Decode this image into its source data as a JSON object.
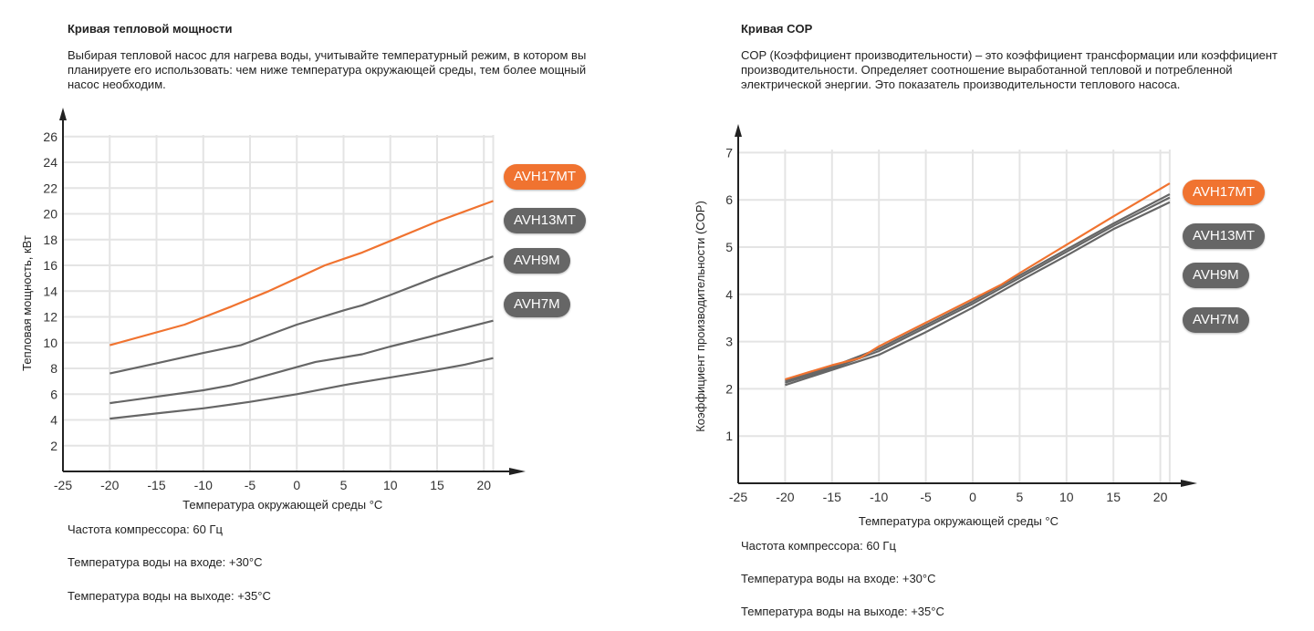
{
  "left": {
    "title": "Кривая тепловой мощности",
    "description": "Выбирая тепловой насос для нагрева воды, учитывайте температурный режим, в котором вы планируете его использовать: чем ниже температура окружающей среды, тем более мощный насос необходим.",
    "notes": [
      "Частота компрессора: 60 Гц",
      "Температура воды на входе: +30°C",
      "Температура воды на выходе: +35°C"
    ]
  },
  "right": {
    "title": "Кривая COP",
    "description": "COP (Коэффициент производительности) – это коэффициент трансформации или коэффициент производительности. Определяет соотношение выработанной тепловой и потребленной электрической энергии. Это показатель производительности теплового насоса.",
    "notes": [
      "Частота компрессора: 60 Гц",
      "Температура воды на входе: +30°C",
      "Температура воды на выходе: +35°C"
    ]
  },
  "colors": {
    "accent": "#f07330",
    "gray": "#666666"
  },
  "chart_data": [
    {
      "type": "line",
      "title": "Кривая тепловой мощности",
      "xlabel": "Температура окружающей среды °C",
      "ylabel": "Тепловая мощность, кВт",
      "xlim": [
        -25,
        21
      ],
      "ylim": [
        0,
        26
      ],
      "xticks": [
        "-25",
        "-20",
        "-15",
        "-10",
        "-5",
        "0",
        "5",
        "10",
        "15",
        "20"
      ],
      "yticks": [
        "2",
        "4",
        "6",
        "8",
        "10",
        "12",
        "14",
        "16",
        "18",
        "20",
        "22",
        "24",
        "26"
      ],
      "grid": true,
      "legend": "right",
      "series": [
        {
          "name": "AVH17MT",
          "color": "#f07330",
          "points": [
            [
              -20,
              9.8
            ],
            [
              -12,
              11.4
            ],
            [
              -7,
              12.8
            ],
            [
              -3,
              14
            ],
            [
              0,
              15
            ],
            [
              3,
              16
            ],
            [
              7,
              17
            ],
            [
              10,
              17.9
            ],
            [
              15,
              19.4
            ],
            [
              21,
              21
            ]
          ]
        },
        {
          "name": "AVH13MT",
          "color": "#666666",
          "points": [
            [
              -20,
              7.6
            ],
            [
              -15,
              8.4
            ],
            [
              -10,
              9.2
            ],
            [
              -6,
              9.8
            ],
            [
              0,
              11.4
            ],
            [
              5,
              12.5
            ],
            [
              7,
              12.9
            ],
            [
              10,
              13.7
            ],
            [
              15,
              15.1
            ],
            [
              21,
              16.7
            ]
          ]
        },
        {
          "name": "AVH9M",
          "color": "#666666",
          "points": [
            [
              -20,
              5.3
            ],
            [
              -10,
              6.3
            ],
            [
              -7,
              6.7
            ],
            [
              0,
              8.1
            ],
            [
              2,
              8.5
            ],
            [
              7,
              9.1
            ],
            [
              10,
              9.7
            ],
            [
              15,
              10.6
            ],
            [
              21,
              11.7
            ]
          ]
        },
        {
          "name": "AVH7M",
          "color": "#666666",
          "points": [
            [
              -20,
              4.1
            ],
            [
              -15,
              4.5
            ],
            [
              -10,
              4.9
            ],
            [
              -5,
              5.4
            ],
            [
              0,
              6
            ],
            [
              5,
              6.7
            ],
            [
              10,
              7.3
            ],
            [
              15,
              7.9
            ],
            [
              18,
              8.3
            ],
            [
              21,
              8.8
            ]
          ]
        }
      ]
    },
    {
      "type": "line",
      "title": "Кривая COP",
      "xlabel": "Температура окружающей среды °C",
      "ylabel": "Коэффициент производительности (COP)",
      "xlim": [
        -25,
        21
      ],
      "ylim": [
        0,
        7
      ],
      "xticks": [
        "-25",
        "-20",
        "-15",
        "-10",
        "-5",
        "0",
        "5",
        "10",
        "15",
        "20"
      ],
      "yticks": [
        "1",
        "2",
        "3",
        "4",
        "5",
        "6",
        "7"
      ],
      "grid": true,
      "legend": "right",
      "series": [
        {
          "name": "AVH17MT",
          "color": "#f07330",
          "points": [
            [
              -20,
              2.2
            ],
            [
              -15,
              2.5
            ],
            [
              -12,
              2.65
            ],
            [
              -10,
              2.9
            ],
            [
              -5,
              3.4
            ],
            [
              0,
              3.9
            ],
            [
              3,
              4.2
            ],
            [
              5,
              4.45
            ],
            [
              10,
              5.05
            ],
            [
              15,
              5.65
            ],
            [
              21,
              6.35
            ]
          ]
        },
        {
          "name": "AVH13MT",
          "color": "#666666",
          "points": [
            [
              -20,
              2.17
            ],
            [
              -15,
              2.47
            ],
            [
              -10,
              2.85
            ],
            [
              -5,
              3.35
            ],
            [
              0,
              3.85
            ],
            [
              5,
              4.4
            ],
            [
              10,
              4.95
            ],
            [
              15,
              5.5
            ],
            [
              21,
              6.12
            ]
          ]
        },
        {
          "name": "AVH9M",
          "color": "#666666",
          "points": [
            [
              -20,
              2.13
            ],
            [
              -15,
              2.43
            ],
            [
              -10,
              2.8
            ],
            [
              -5,
              3.3
            ],
            [
              0,
              3.8
            ],
            [
              5,
              4.35
            ],
            [
              10,
              4.9
            ],
            [
              15,
              5.45
            ],
            [
              21,
              6.05
            ]
          ]
        },
        {
          "name": "AVH7M",
          "color": "#666666",
          "points": [
            [
              -20,
              2.08
            ],
            [
              -15,
              2.4
            ],
            [
              -10,
              2.72
            ],
            [
              -5,
              3.2
            ],
            [
              0,
              3.72
            ],
            [
              5,
              4.28
            ],
            [
              10,
              4.82
            ],
            [
              15,
              5.38
            ],
            [
              21,
              5.95
            ]
          ]
        }
      ]
    }
  ]
}
